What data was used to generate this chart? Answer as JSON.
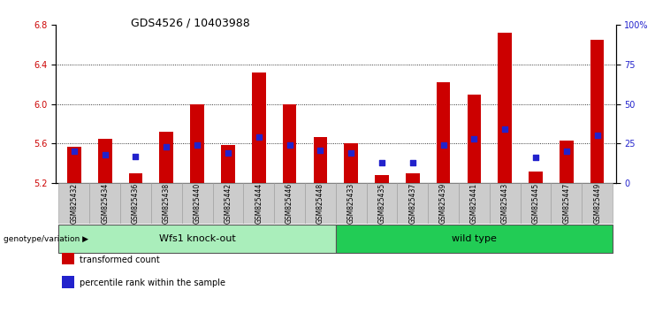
{
  "title": "GDS4526 / 10403988",
  "samples": [
    "GSM825432",
    "GSM825434",
    "GSM825436",
    "GSM825438",
    "GSM825440",
    "GSM825442",
    "GSM825444",
    "GSM825446",
    "GSM825448",
    "GSM825433",
    "GSM825435",
    "GSM825437",
    "GSM825439",
    "GSM825441",
    "GSM825443",
    "GSM825445",
    "GSM825447",
    "GSM825449"
  ],
  "transformed_count": [
    5.57,
    5.65,
    5.3,
    5.72,
    6.0,
    5.59,
    6.32,
    6.0,
    5.67,
    5.6,
    5.28,
    5.3,
    6.22,
    6.1,
    6.72,
    5.32,
    5.63,
    6.65
  ],
  "percentile_rank": [
    20,
    18,
    17,
    23,
    24,
    19,
    29,
    24,
    21,
    19,
    13,
    13,
    24,
    28,
    34,
    16,
    20,
    30
  ],
  "group1_label": "Wfs1 knock-out",
  "group2_label": "wild type",
  "group1_count": 9,
  "group2_count": 9,
  "genotype_label": "genotype/variation",
  "legend_count": "transformed count",
  "legend_percentile": "percentile rank within the sample",
  "ylim_left": [
    5.2,
    6.8
  ],
  "ylim_right": [
    0,
    100
  ],
  "yticks_left": [
    5.2,
    5.6,
    6.0,
    6.4,
    6.8
  ],
  "yticks_right": [
    0,
    25,
    50,
    75,
    100
  ],
  "bar_color": "#CC0000",
  "dot_color": "#2222CC",
  "group1_bg": "#AAEEBB",
  "group2_bg": "#22CC55",
  "tick_label_bg": "#CCCCCC",
  "axis_bg": "#FFFFFF",
  "bar_width": 0.45,
  "dot_size": 22,
  "title_fontsize": 9,
  "tick_fontsize": 7,
  "sample_fontsize": 5.5,
  "group_fontsize": 8
}
